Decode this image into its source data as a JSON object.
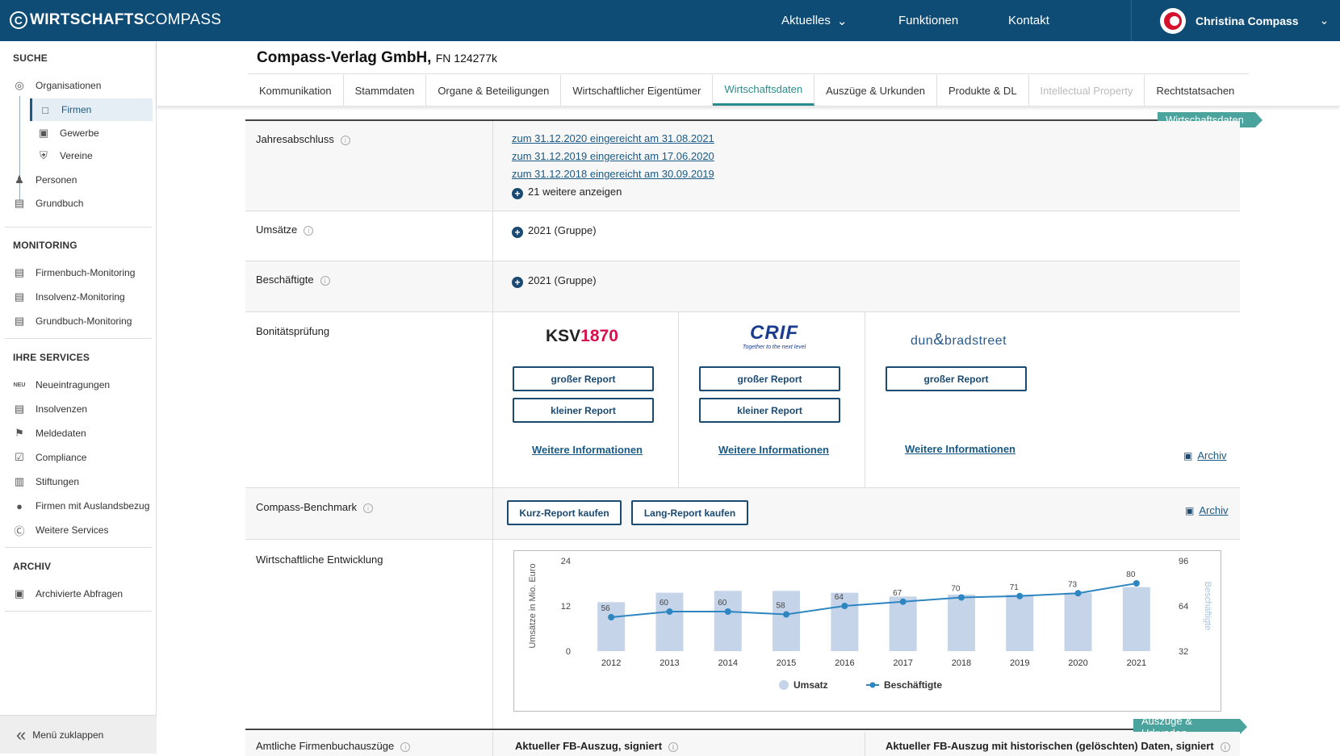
{
  "header": {
    "logo_bold": "WIRTSCHAFTS",
    "logo_light": "COMPASS",
    "nav": [
      "Aktuelles",
      "Funktionen",
      "Kontakt"
    ],
    "user": "Christina Compass"
  },
  "sidebar": {
    "suche": "SUCHE",
    "monitoring": "MONITORING",
    "services": "IHRE SERVICES",
    "archiv": "ARCHIV",
    "items": {
      "organisationen": "Organisationen",
      "firmen": "Firmen",
      "gewerbe": "Gewerbe",
      "vereine": "Vereine",
      "personen": "Personen",
      "grundbuch": "Grundbuch",
      "fb_mon": "Firmenbuch-Monitoring",
      "ins_mon": "Insolvenz-Monitoring",
      "gb_mon": "Grundbuch-Monitoring",
      "neu": "Neueintragungen",
      "neu_badge": "NEU",
      "insolvenzen": "Insolvenzen",
      "meldedaten": "Meldedaten",
      "compliance": "Compliance",
      "stiftungen": "Stiftungen",
      "ausland": "Firmen mit Auslandsbezug",
      "weitere": "Weitere Services",
      "archivierte": "Archivierte Abfragen"
    },
    "collapse": "Menü zuklappen"
  },
  "company": {
    "name": "Compass-Verlag GmbH,",
    "fn": "FN 124277k"
  },
  "tabs": [
    "Kommunikation",
    "Stammdaten",
    "Organe & Beteiligungen",
    "Wirtschaftlicher Eigentümer",
    "Wirtschaftsdaten",
    "Auszüge & Urkunden",
    "Produkte & DL",
    "Intellectual Property",
    "Rechtstatsachen"
  ],
  "sections": {
    "wirtschaftsdaten": "Wirtschaftsdaten",
    "auszuege": "Auszüge & Urkunden"
  },
  "jahresabschluss": {
    "label": "Jahresabschluss",
    "links": [
      "zum 31.12.2020 eingereicht am 31.08.2021",
      "zum 31.12.2019 eingereicht am 17.06.2020",
      "zum 31.12.2018 eingereicht am 30.09.2019"
    ],
    "more": "21 weitere anzeigen"
  },
  "umsaetze": {
    "label": "Umsätze",
    "value": "2021 (Gruppe)"
  },
  "beschaeftigte": {
    "label": "Beschäftigte",
    "value": "2021 (Gruppe)"
  },
  "bonitaet": {
    "label": "Bonitätsprüfung",
    "ksv_a": "KSV",
    "ksv_b": "1870",
    "crif": "CRIF",
    "crif_tag": "Together to the next level",
    "dnb_a": "dun",
    "dnb_b": "bradstreet",
    "gross": "großer Report",
    "klein": "kleiner Report",
    "weitere": "Weitere Informationen",
    "archiv": "Archiv"
  },
  "benchmark": {
    "label": "Compass-Benchmark",
    "kurz": "Kurz-Report kaufen",
    "lang": "Lang-Report kaufen",
    "archiv": "Archiv"
  },
  "entwicklung": {
    "label": "Wirtschaftliche Entwicklung"
  },
  "amtlich": {
    "label": "Amtliche Firmenbuchauszüge",
    "col1": "Aktueller FB-Auszug, signiert",
    "col2": "Aktueller FB-Auszug mit historischen (gelöschten) Daten, signiert"
  },
  "chart_data": {
    "type": "bar",
    "categories": [
      "2012",
      "2013",
      "2014",
      "2015",
      "2016",
      "2017",
      "2018",
      "2019",
      "2020",
      "2021"
    ],
    "series": [
      {
        "name": "Umsatz",
        "type": "bar",
        "axis": "left",
        "values": [
          13,
          15.5,
          16,
          16,
          15.5,
          14.5,
          15,
          15,
          15.5,
          17
        ],
        "color": "#c6d4ea"
      },
      {
        "name": "Beschäftigte",
        "type": "line",
        "axis": "right",
        "values": [
          56,
          60,
          60,
          58,
          64,
          67,
          70,
          71,
          73,
          80
        ],
        "color": "#2e86c1"
      }
    ],
    "ylabel": "Umsätze in Mio. Euro",
    "y2label": "Beschäftigte",
    "ylim": [
      0,
      24
    ],
    "yticks": [
      0,
      12,
      24
    ],
    "y2lim": [
      32,
      96
    ],
    "y2ticks": [
      32,
      64,
      96
    ],
    "legend": "bottom"
  }
}
